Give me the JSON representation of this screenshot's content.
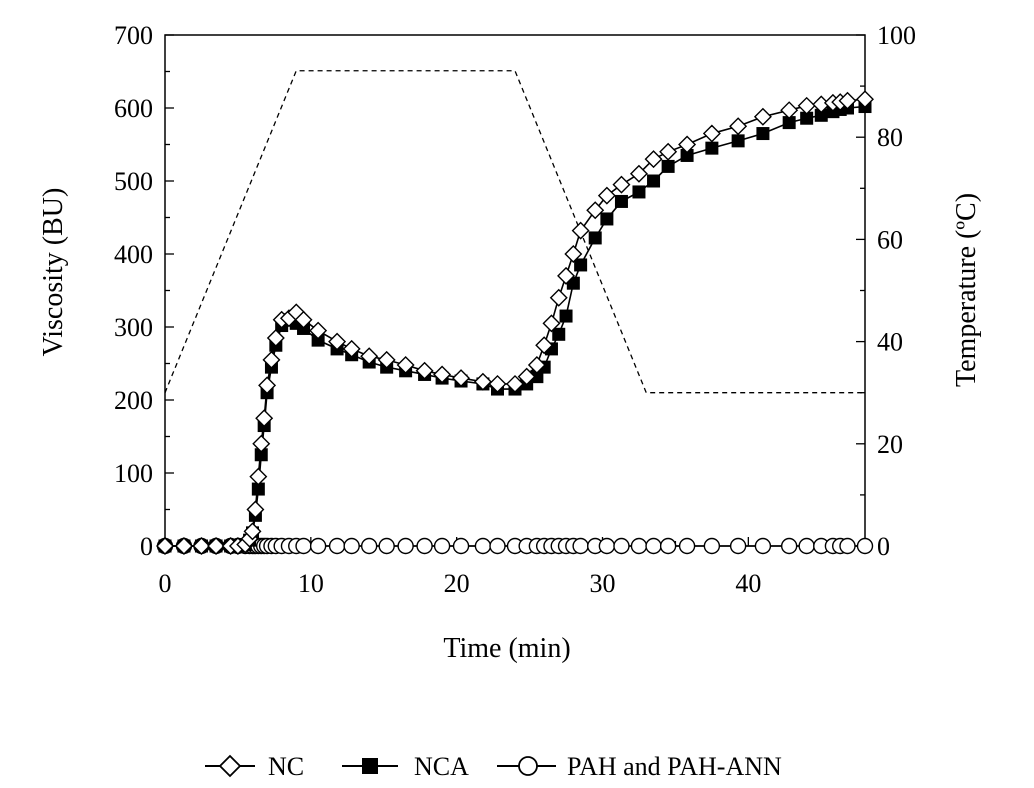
{
  "chart_data": {
    "type": "line",
    "title": "",
    "xlabel": "Time (min)",
    "ylabel": "Viscosity (BU)",
    "y2label": "Temperature (ºC)",
    "xlim": [
      0,
      48
    ],
    "ylim": [
      0,
      700
    ],
    "y2lim": [
      0,
      100
    ],
    "xticks": [
      0,
      10,
      20,
      30,
      40
    ],
    "yticks": [
      0,
      100,
      200,
      300,
      400,
      500,
      600,
      700
    ],
    "y2ticks": [
      0,
      20,
      40,
      60,
      80,
      100
    ],
    "grid": false,
    "legend_position": "bottom",
    "colors": {
      "line": "#000000",
      "marker_fill_open": "#ffffff",
      "marker_fill_solid": "#000000"
    },
    "series": [
      {
        "name": "NC",
        "marker": "diamond-open",
        "x": [
          0,
          1.3,
          2.5,
          3.5,
          4.5,
          5.0,
          5.5,
          5.8,
          6.0,
          6.2,
          6.4,
          6.6,
          6.8,
          7.0,
          7.3,
          7.6,
          8.0,
          8.5,
          9.0,
          9.5,
          10.5,
          11.8,
          12.8,
          14.0,
          15.2,
          16.5,
          17.8,
          19.0,
          20.3,
          21.8,
          22.8,
          24.0,
          24.8,
          25.5,
          26.0,
          26.5,
          27.0,
          27.5,
          28.0,
          28.5,
          29.5,
          30.3,
          31.3,
          32.5,
          33.5,
          34.5,
          35.8,
          37.5,
          39.3,
          41.0,
          42.8,
          44.0,
          45.0,
          45.8,
          46.3,
          46.8,
          48.0
        ],
        "y": [
          0,
          0,
          0,
          0,
          0,
          0,
          2,
          10,
          20,
          50,
          95,
          140,
          175,
          220,
          255,
          285,
          310,
          312,
          320,
          310,
          295,
          280,
          270,
          260,
          255,
          248,
          240,
          235,
          230,
          225,
          222,
          222,
          232,
          248,
          275,
          305,
          340,
          370,
          400,
          432,
          460,
          480,
          495,
          510,
          530,
          540,
          550,
          565,
          575,
          588,
          597,
          603,
          605,
          607,
          608,
          610,
          612
        ]
      },
      {
        "name": "NCA",
        "marker": "square-filled",
        "x": [
          0,
          1.3,
          2.5,
          3.5,
          4.5,
          5.0,
          5.5,
          5.8,
          6.0,
          6.2,
          6.4,
          6.6,
          6.8,
          7.0,
          7.3,
          7.6,
          8.0,
          8.5,
          9.0,
          9.5,
          10.5,
          11.8,
          12.8,
          14.0,
          15.2,
          16.5,
          17.8,
          19.0,
          20.3,
          21.8,
          22.8,
          24.0,
          24.8,
          25.5,
          26.0,
          26.5,
          27.0,
          27.5,
          28.0,
          28.5,
          29.5,
          30.3,
          31.3,
          32.5,
          33.5,
          34.5,
          35.8,
          37.5,
          39.3,
          41.0,
          42.8,
          44.0,
          45.0,
          45.8,
          46.3,
          46.8,
          48.0
        ],
        "y": [
          0,
          0,
          0,
          0,
          0,
          0,
          2,
          8,
          18,
          42,
          78,
          125,
          165,
          210,
          245,
          275,
          302,
          310,
          305,
          298,
          282,
          270,
          262,
          252,
          245,
          240,
          235,
          230,
          226,
          222,
          215,
          215,
          222,
          232,
          245,
          270,
          290,
          315,
          360,
          385,
          422,
          448,
          472,
          485,
          500,
          520,
          535,
          545,
          555,
          565,
          580,
          586,
          590,
          595,
          598,
          600,
          602
        ]
      },
      {
        "name": "PAH and PAH-ANN",
        "marker": "circle-open",
        "x": [
          0,
          1.3,
          2.5,
          3.5,
          4.5,
          5.0,
          5.5,
          5.8,
          6.0,
          6.2,
          6.4,
          6.6,
          6.8,
          7.0,
          7.3,
          7.6,
          8.0,
          8.5,
          9.0,
          9.5,
          10.5,
          11.8,
          12.8,
          14.0,
          15.2,
          16.5,
          17.8,
          19.0,
          20.3,
          21.8,
          22.8,
          24.0,
          24.8,
          25.5,
          26.0,
          26.5,
          27.0,
          27.5,
          28.0,
          28.5,
          29.5,
          30.3,
          31.3,
          32.5,
          33.5,
          34.5,
          35.8,
          37.5,
          39.3,
          41.0,
          42.8,
          44.0,
          45.0,
          45.8,
          46.3,
          46.8,
          48.0
        ],
        "y": [
          0,
          0,
          0,
          0,
          0,
          0,
          0,
          0,
          0,
          0,
          0,
          0,
          0,
          0,
          0,
          0,
          0,
          0,
          0,
          0,
          0,
          0,
          0,
          0,
          0,
          0,
          0,
          0,
          0,
          0,
          0,
          0,
          0,
          0,
          0,
          0,
          0,
          0,
          0,
          0,
          0,
          0,
          0,
          0,
          0,
          0,
          0,
          0,
          0,
          0,
          0,
          0,
          0,
          0,
          0,
          0,
          0
        ]
      },
      {
        "style": "dashed",
        "axis": "right",
        "x": [
          0,
          9,
          24,
          33,
          48
        ],
        "y": [
          30,
          93,
          93,
          30,
          30
        ]
      }
    ]
  }
}
